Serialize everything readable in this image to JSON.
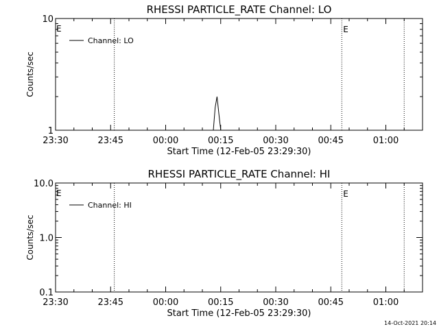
{
  "chart_data": [
    {
      "type": "line",
      "title": "RHESSI PARTICLE_RATE Channel: LO",
      "xlabel": "Start Time (12-Feb-05 23:29:30)",
      "ylabel": "Counts/sec",
      "yscale": "log",
      "xlim": [
        "23:30",
        "01:10"
      ],
      "ylim": [
        1,
        10
      ],
      "x_ticks": [
        "23:30",
        "23:45",
        "00:00",
        "00:15",
        "00:30",
        "00:45",
        "01:00"
      ],
      "y_ticks": [
        "1",
        "10"
      ],
      "legend": {
        "placement": "top-left",
        "entries": [
          "Channel: LO"
        ]
      },
      "series": [
        {
          "name": "Channel: LO",
          "x": [
            "00:13:00",
            "00:13:30",
            "00:14:00",
            "00:14:30",
            "00:15:00"
          ],
          "values": [
            1,
            1.6,
            2,
            1.4,
            1
          ]
        }
      ],
      "markers": [
        {
          "time": "23:46",
          "label": ""
        },
        {
          "time": "00:48",
          "label": "E"
        },
        {
          "time": "01:05",
          "label": ""
        }
      ],
      "edge_label": "E"
    },
    {
      "type": "line",
      "title": "RHESSI PARTICLE_RATE Channel: HI",
      "xlabel": "Start Time (12-Feb-05 23:29:30)",
      "ylabel": "Counts/sec",
      "yscale": "log",
      "xlim": [
        "23:30",
        "01:10"
      ],
      "ylim": [
        0.1,
        10
      ],
      "x_ticks": [
        "23:30",
        "23:45",
        "00:00",
        "00:15",
        "00:30",
        "00:45",
        "01:00"
      ],
      "y_ticks": [
        "0.1",
        "1.0",
        "10.0"
      ],
      "legend": {
        "placement": "top-left",
        "entries": [
          "Channel: HI"
        ]
      },
      "series": [
        {
          "name": "Channel: HI",
          "x": [],
          "values": []
        }
      ],
      "markers": [
        {
          "time": "23:46",
          "label": ""
        },
        {
          "time": "00:48",
          "label": "E"
        },
        {
          "time": "01:05",
          "label": ""
        }
      ],
      "edge_label": "E"
    }
  ],
  "footer": {
    "timestamp": "14-Oct-2021 20:14"
  }
}
